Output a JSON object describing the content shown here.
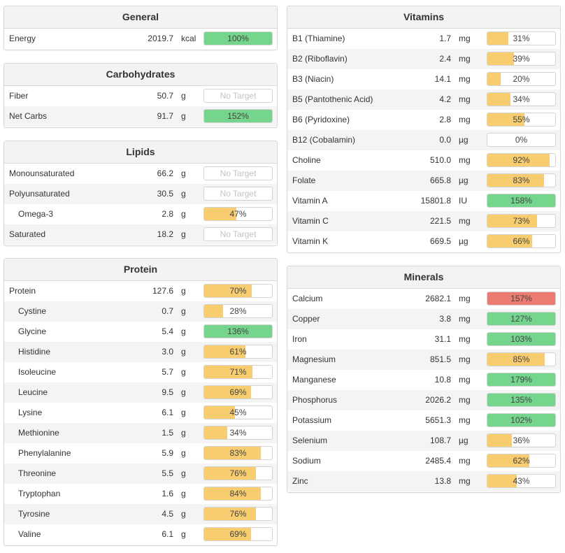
{
  "colors": {
    "yellow": "#f7cd6f",
    "green": "#75d58d",
    "red": "#ec7b72"
  },
  "general": {
    "title": "General",
    "rows": [
      {
        "name": "Energy",
        "amount": "2019.7",
        "unit": "kcal",
        "pct_label": "100%",
        "fill": 1.0,
        "color": "green"
      }
    ]
  },
  "carbohydrates": {
    "title": "Carbohydrates",
    "rows": [
      {
        "name": "Fiber",
        "amount": "50.7",
        "unit": "g",
        "pct_label": "No Target",
        "fill": 0,
        "color": "none"
      },
      {
        "name": "Net Carbs",
        "amount": "91.7",
        "unit": "g",
        "pct_label": "152%",
        "fill": 1.0,
        "color": "green"
      }
    ]
  },
  "lipids": {
    "title": "Lipids",
    "rows": [
      {
        "name": "Monounsaturated",
        "amount": "66.2",
        "unit": "g",
        "pct_label": "No Target",
        "fill": 0,
        "color": "none"
      },
      {
        "name": "Polyunsaturated",
        "amount": "30.5",
        "unit": "g",
        "pct_label": "No Target",
        "fill": 0,
        "color": "none"
      },
      {
        "name": "Omega-3",
        "amount": "2.8",
        "unit": "g",
        "pct_label": "47%",
        "fill": 0.47,
        "color": "yellow",
        "sub": true
      },
      {
        "name": "Saturated",
        "amount": "18.2",
        "unit": "g",
        "pct_label": "No Target",
        "fill": 0,
        "color": "none"
      }
    ]
  },
  "protein": {
    "title": "Protein",
    "rows": [
      {
        "name": "Protein",
        "amount": "127.6",
        "unit": "g",
        "pct_label": "70%",
        "fill": 0.7,
        "color": "yellow"
      },
      {
        "name": "Cystine",
        "amount": "0.7",
        "unit": "g",
        "pct_label": "28%",
        "fill": 0.28,
        "color": "yellow",
        "sub": true
      },
      {
        "name": "Glycine",
        "amount": "5.4",
        "unit": "g",
        "pct_label": "136%",
        "fill": 1.0,
        "color": "green",
        "sub": true
      },
      {
        "name": "Histidine",
        "amount": "3.0",
        "unit": "g",
        "pct_label": "61%",
        "fill": 0.61,
        "color": "yellow",
        "sub": true
      },
      {
        "name": "Isoleucine",
        "amount": "5.7",
        "unit": "g",
        "pct_label": "71%",
        "fill": 0.71,
        "color": "yellow",
        "sub": true
      },
      {
        "name": "Leucine",
        "amount": "9.5",
        "unit": "g",
        "pct_label": "69%",
        "fill": 0.69,
        "color": "yellow",
        "sub": true
      },
      {
        "name": "Lysine",
        "amount": "6.1",
        "unit": "g",
        "pct_label": "45%",
        "fill": 0.45,
        "color": "yellow",
        "sub": true
      },
      {
        "name": "Methionine",
        "amount": "1.5",
        "unit": "g",
        "pct_label": "34%",
        "fill": 0.34,
        "color": "yellow",
        "sub": true
      },
      {
        "name": "Phenylalanine",
        "amount": "5.9",
        "unit": "g",
        "pct_label": "83%",
        "fill": 0.83,
        "color": "yellow",
        "sub": true
      },
      {
        "name": "Threonine",
        "amount": "5.5",
        "unit": "g",
        "pct_label": "76%",
        "fill": 0.76,
        "color": "yellow",
        "sub": true
      },
      {
        "name": "Tryptophan",
        "amount": "1.6",
        "unit": "g",
        "pct_label": "84%",
        "fill": 0.84,
        "color": "yellow",
        "sub": true
      },
      {
        "name": "Tyrosine",
        "amount": "4.5",
        "unit": "g",
        "pct_label": "76%",
        "fill": 0.76,
        "color": "yellow",
        "sub": true
      },
      {
        "name": "Valine",
        "amount": "6.1",
        "unit": "g",
        "pct_label": "69%",
        "fill": 0.69,
        "color": "yellow",
        "sub": true
      }
    ]
  },
  "vitamins": {
    "title": "Vitamins",
    "rows": [
      {
        "name": "B1 (Thiamine)",
        "amount": "1.7",
        "unit": "mg",
        "pct_label": "31%",
        "fill": 0.31,
        "color": "yellow"
      },
      {
        "name": "B2 (Riboflavin)",
        "amount": "2.4",
        "unit": "mg",
        "pct_label": "39%",
        "fill": 0.39,
        "color": "yellow"
      },
      {
        "name": "B3 (Niacin)",
        "amount": "14.1",
        "unit": "mg",
        "pct_label": "20%",
        "fill": 0.2,
        "color": "yellow"
      },
      {
        "name": "B5 (Pantothenic Acid)",
        "amount": "4.2",
        "unit": "mg",
        "pct_label": "34%",
        "fill": 0.34,
        "color": "yellow"
      },
      {
        "name": "B6 (Pyridoxine)",
        "amount": "2.8",
        "unit": "mg",
        "pct_label": "55%",
        "fill": 0.55,
        "color": "yellow"
      },
      {
        "name": "B12 (Cobalamin)",
        "amount": "0.0",
        "unit": "µg",
        "pct_label": "0%",
        "fill": 0,
        "color": "yellow"
      },
      {
        "name": "Choline",
        "amount": "510.0",
        "unit": "mg",
        "pct_label": "92%",
        "fill": 0.92,
        "color": "yellow"
      },
      {
        "name": "Folate",
        "amount": "665.8",
        "unit": "µg",
        "pct_label": "83%",
        "fill": 0.83,
        "color": "yellow"
      },
      {
        "name": "Vitamin A",
        "amount": "15801.8",
        "unit": "IU",
        "pct_label": "158%",
        "fill": 1.0,
        "color": "green"
      },
      {
        "name": "Vitamin C",
        "amount": "221.5",
        "unit": "mg",
        "pct_label": "73%",
        "fill": 0.73,
        "color": "yellow"
      },
      {
        "name": "Vitamin K",
        "amount": "669.5",
        "unit": "µg",
        "pct_label": "66%",
        "fill": 0.66,
        "color": "yellow"
      }
    ]
  },
  "minerals": {
    "title": "Minerals",
    "rows": [
      {
        "name": "Calcium",
        "amount": "2682.1",
        "unit": "mg",
        "pct_label": "157%",
        "fill": 1.0,
        "color": "red"
      },
      {
        "name": "Copper",
        "amount": "3.8",
        "unit": "mg",
        "pct_label": "127%",
        "fill": 1.0,
        "color": "green"
      },
      {
        "name": "Iron",
        "amount": "31.1",
        "unit": "mg",
        "pct_label": "103%",
        "fill": 1.0,
        "color": "green"
      },
      {
        "name": "Magnesium",
        "amount": "851.5",
        "unit": "mg",
        "pct_label": "85%",
        "fill": 0.85,
        "color": "yellow"
      },
      {
        "name": "Manganese",
        "amount": "10.8",
        "unit": "mg",
        "pct_label": "179%",
        "fill": 1.0,
        "color": "green"
      },
      {
        "name": "Phosphorus",
        "amount": "2026.2",
        "unit": "mg",
        "pct_label": "135%",
        "fill": 1.0,
        "color": "green"
      },
      {
        "name": "Potassium",
        "amount": "5651.3",
        "unit": "mg",
        "pct_label": "102%",
        "fill": 1.0,
        "color": "green"
      },
      {
        "name": "Selenium",
        "amount": "108.7",
        "unit": "µg",
        "pct_label": "36%",
        "fill": 0.36,
        "color": "yellow"
      },
      {
        "name": "Sodium",
        "amount": "2485.4",
        "unit": "mg",
        "pct_label": "62%",
        "fill": 0.62,
        "color": "yellow"
      },
      {
        "name": "Zinc",
        "amount": "13.8",
        "unit": "mg",
        "pct_label": "43%",
        "fill": 0.43,
        "color": "yellow"
      }
    ]
  }
}
